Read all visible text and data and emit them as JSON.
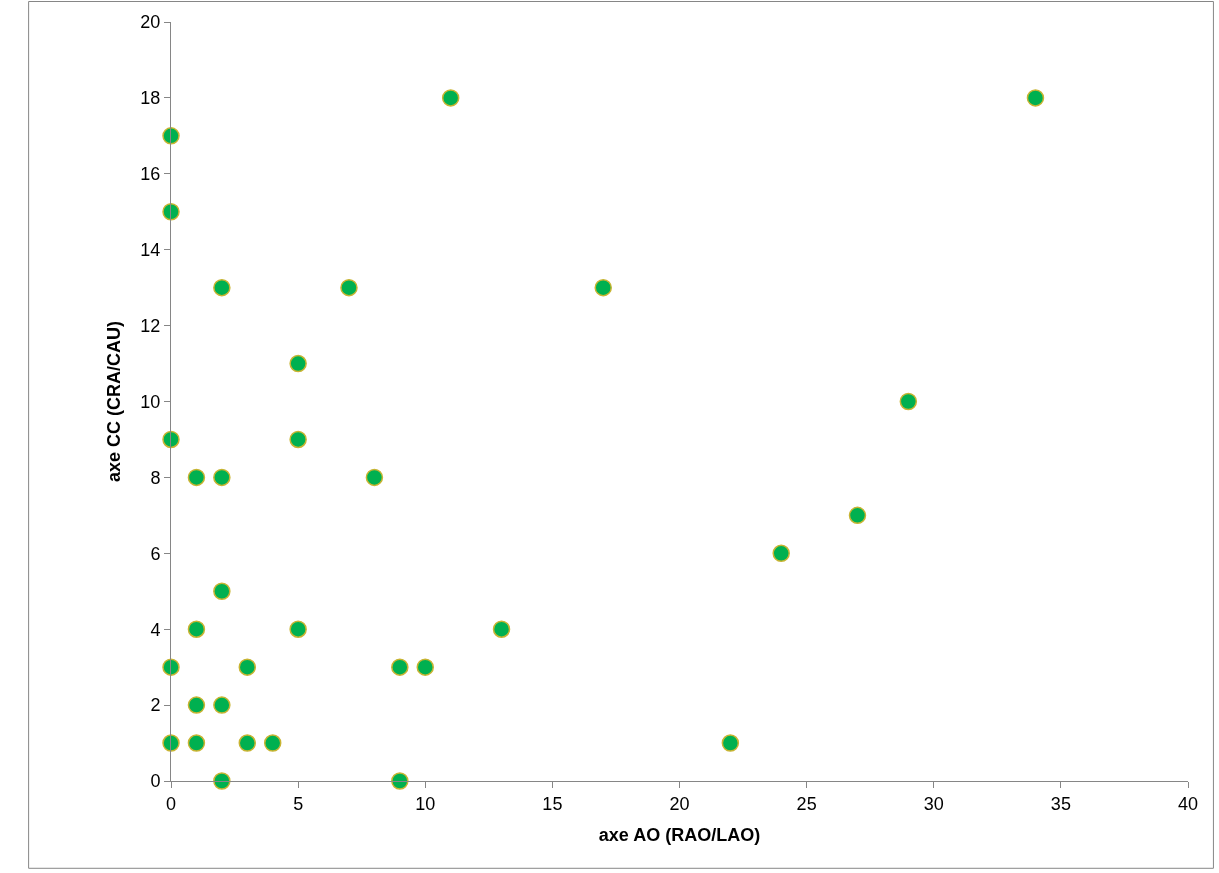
{
  "chart_data": {
    "type": "scatter",
    "xlabel": "axe AO (RAO/LAO)",
    "ylabel": "axe CC (CRA/CAU)",
    "x": [
      0,
      0,
      0,
      0,
      0,
      1,
      1,
      1,
      1,
      2,
      2,
      2,
      2,
      2,
      3,
      3,
      4,
      5,
      5,
      5,
      7,
      8,
      9,
      9,
      10,
      11,
      13,
      17,
      22,
      24,
      27,
      29,
      34
    ],
    "series": [
      {
        "color": "#00b050",
        "values": [
          17,
          15,
          9,
          3,
          1,
          8,
          4,
          2,
          1,
          13,
          8,
          5,
          2,
          0,
          3,
          1,
          1,
          11,
          9,
          4,
          13,
          8,
          3,
          0,
          3,
          18,
          4,
          13,
          1,
          6,
          7,
          10,
          18
        ]
      }
    ],
    "xlim": [
      0,
      40
    ],
    "xticks": [
      0,
      5,
      10,
      15,
      20,
      25,
      30,
      35,
      40
    ],
    "ylim": [
      0,
      20
    ],
    "yticks": [
      0,
      2,
      4,
      6,
      8,
      10,
      12,
      14,
      16,
      18,
      20
    ],
    "marker": "circle"
  }
}
